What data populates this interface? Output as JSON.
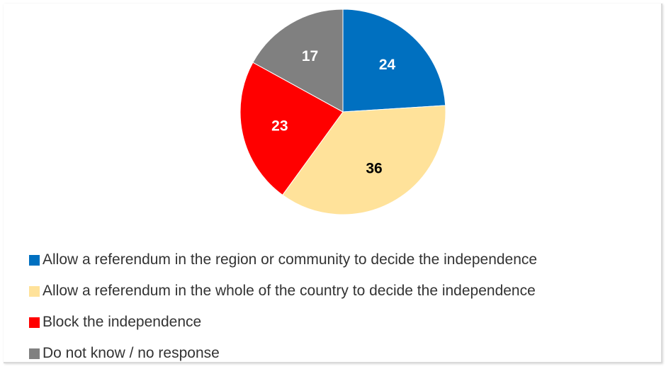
{
  "chart_data": {
    "type": "pie",
    "title": "",
    "start_angle_deg": 0,
    "direction": "clockwise",
    "slices": [
      {
        "label": "Allow a referendum in the region or community to decide the independence",
        "value": 24,
        "value_label": "24",
        "color": "#0070C0",
        "label_color": "#ffffff"
      },
      {
        "label": "Allow a referendum in the whole of the country to decide the independence",
        "value": 36,
        "value_label": "36",
        "color": "#FFE29A",
        "label_color": "#000000"
      },
      {
        "label": "Block the independence",
        "value": 23,
        "value_label": "23",
        "color": "#FF0000",
        "label_color": "#ffffff"
      },
      {
        "label": "Do not know / no response",
        "value": 17,
        "value_label": "17",
        "color": "#808080",
        "label_color": "#ffffff"
      }
    ],
    "legend_position": "bottom"
  }
}
